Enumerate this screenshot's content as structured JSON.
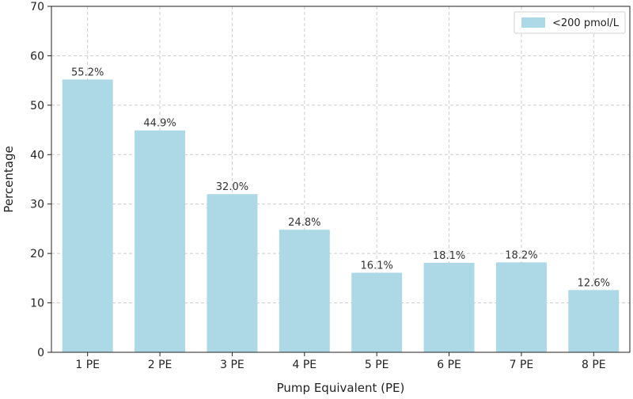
{
  "chart_data": {
    "type": "bar",
    "categories": [
      "1 PE",
      "2 PE",
      "3 PE",
      "4 PE",
      "5 PE",
      "6 PE",
      "7 PE",
      "8 PE"
    ],
    "series": [
      {
        "name": "<200 pmol/L",
        "values": [
          55.2,
          44.9,
          32.0,
          24.8,
          16.1,
          18.1,
          18.2,
          12.6
        ],
        "color": "#add8e6"
      }
    ],
    "data_labels": [
      "55.2%",
      "44.9%",
      "32.0%",
      "24.8%",
      "16.1%",
      "18.1%",
      "18.2%",
      "12.6%"
    ],
    "xlabel": "Pump Equivalent (PE)",
    "ylabel": "Percentage",
    "ylim": [
      0,
      70
    ],
    "yticks": [
      0,
      10,
      20,
      30,
      40,
      50,
      60,
      70
    ],
    "grid": true,
    "legend_position": "top-right"
  }
}
